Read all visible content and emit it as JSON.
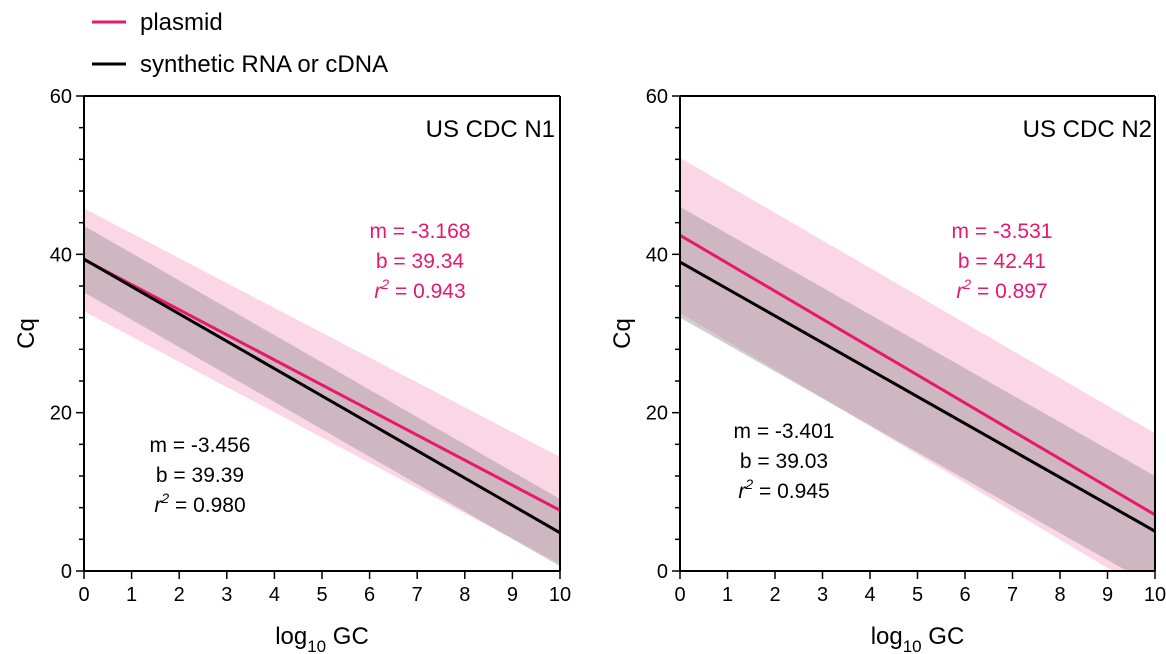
{
  "legend": [
    {
      "label": "plasmid",
      "color": "#e8176f"
    },
    {
      "label": "synthetic RNA or cDNA",
      "color": "#000000"
    }
  ],
  "colors": {
    "plasmid_line": "#e8176f",
    "plasmid_band": "#f7b6cf",
    "synthetic_line": "#000000",
    "synthetic_band": "#8f8a8c"
  },
  "chart_data": [
    {
      "type": "line",
      "title": "US CDC N1",
      "xlabel_main": "log",
      "xlabel_sub": "10",
      "xlabel_rest": "GC",
      "ylabel": "Cq",
      "xlim": [
        0,
        10
      ],
      "ylim": [
        0,
        60
      ],
      "x_ticks": [
        0,
        1,
        2,
        3,
        4,
        5,
        6,
        7,
        8,
        9,
        10
      ],
      "y_ticks": [
        0,
        20,
        40,
        60
      ],
      "series": [
        {
          "name": "plasmid",
          "x": [
            0,
            10
          ],
          "y": [
            39.34,
            7.66
          ],
          "band_upper": [
            45.8,
            14.4
          ],
          "band_lower": [
            32.8,
            0.9
          ],
          "stats": {
            "m": "m = -3.168",
            "b": "b = 39.34",
            "r_pre": "r",
            "r_sup": "2",
            "r_post": " = 0.943"
          }
        },
        {
          "name": "synthetic RNA or cDNA",
          "x": [
            0,
            10
          ],
          "y": [
            39.39,
            4.83
          ],
          "band_upper": [
            43.6,
            9.1
          ],
          "band_lower": [
            35.2,
            0.6
          ],
          "stats": {
            "m": "m = -3.456",
            "b": "b = 39.39",
            "r_pre": "r",
            "r_sup": "2",
            "r_post": " = 0.980"
          }
        }
      ]
    },
    {
      "type": "line",
      "title": "US CDC N2",
      "xlabel_main": "log",
      "xlabel_sub": "10",
      "xlabel_rest": "GC",
      "ylabel": "Cq",
      "xlim": [
        0,
        10
      ],
      "ylim": [
        0,
        60
      ],
      "x_ticks": [
        0,
        1,
        2,
        3,
        4,
        5,
        6,
        7,
        8,
        9,
        10
      ],
      "y_ticks": [
        0,
        20,
        40,
        60
      ],
      "series": [
        {
          "name": "plasmid",
          "x": [
            0,
            10
          ],
          "y": [
            42.41,
            7.1
          ],
          "band_upper": [
            52.2,
            17.4
          ],
          "band_lower": [
            32.6,
            -3.2
          ],
          "stats": {
            "m": "m = -3.531",
            "b": "b = 42.41",
            "r_pre": "r",
            "r_sup": "2",
            "r_post": " = 0.897"
          }
        },
        {
          "name": "synthetic RNA or cDNA",
          "x": [
            0,
            10
          ],
          "y": [
            39.03,
            5.02
          ],
          "band_upper": [
            46.0,
            12.0
          ],
          "band_lower": [
            32.0,
            -2.0
          ],
          "stats": {
            "m": "m = -3.401",
            "b": "b = 39.03",
            "r_pre": "r",
            "r_sup": "2",
            "r_post": " = 0.945"
          }
        }
      ]
    }
  ]
}
